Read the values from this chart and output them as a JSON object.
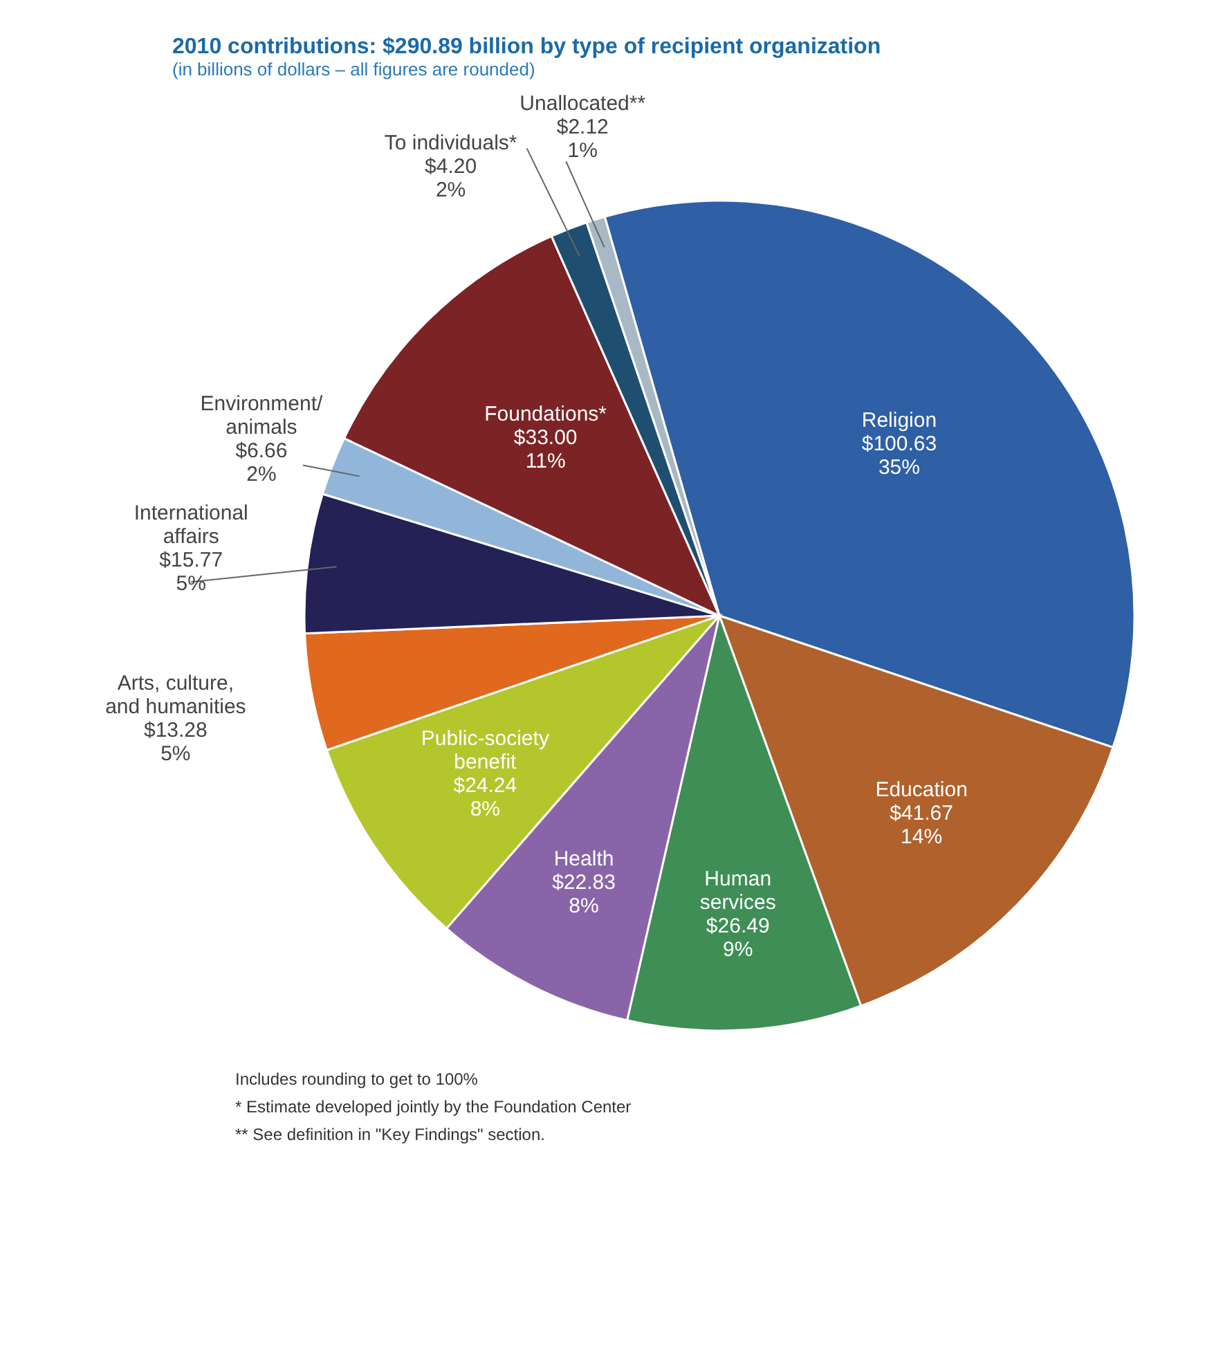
{
  "chart_data": {
    "type": "pie",
    "title": "2010 contributions: $290.89 billion by type of recipient organization",
    "subtitle": "(in billions of dollars – all figures are rounded)",
    "categories": [
      "Religion",
      "Education",
      "Human services",
      "Health",
      "Public-society benefit",
      "Arts, culture, and humanities",
      "International affairs",
      "Environment/ animals",
      "Foundations*",
      "To individuals*",
      "Unallocated**"
    ],
    "values": [
      100.63,
      41.67,
      26.49,
      22.83,
      24.24,
      13.28,
      15.77,
      6.66,
      33.0,
      4.2,
      2.12
    ],
    "value_labels": [
      "$100.63\n35%",
      "$41.67\n14%",
      "$26.49\n9%",
      "$22.83\n8%",
      "$24.24\n8%",
      "$13.28\n5%",
      "$15.77\n5%",
      "$6.66\n2%",
      "$33.00\n11%",
      "$4.20\n2%",
      "$2.12\n1%"
    ],
    "colors": [
      "#2f5fa4",
      "#b0612c",
      "#3e8e56",
      "#8a64a9",
      "#b3c62c",
      "#e0691f",
      "#242156",
      "#92b6da",
      "#7c2326",
      "#1f4f70",
      "#a8b8c4"
    ],
    "annotations": [
      "Includes rounding to get to 100%",
      "* Estimate developed jointly by the Foundation Center",
      "** See definition in \"Key Findings\" section."
    ]
  }
}
